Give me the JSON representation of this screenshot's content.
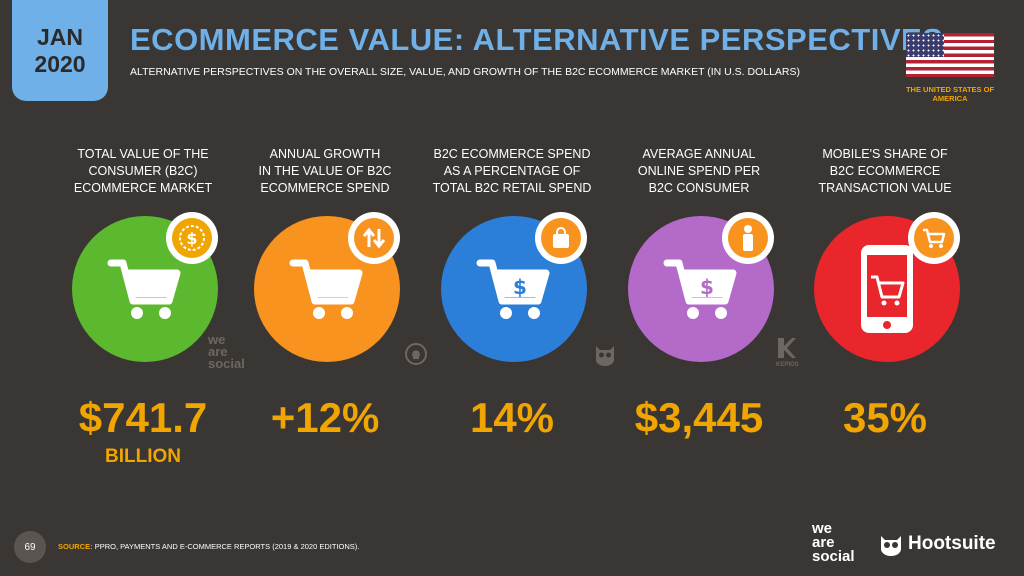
{
  "date_badge": {
    "month": "JAN",
    "year": "2020"
  },
  "header": {
    "title": "ECOMMERCE VALUE: ALTERNATIVE PERSPECTIVES",
    "subtitle": "ALTERNATIVE PERSPECTIVES ON THE OVERALL SIZE, VALUE, AND GROWTH OF THE B2C ECOMMERCE MARKET (IN U.S. DOLLARS)"
  },
  "country": {
    "line1": "THE UNITED STATES OF",
    "line2": "AMERICA",
    "flag_icon": "us-flag-icon"
  },
  "colors": {
    "accent_blue": "#6fb0e9",
    "accent_orange": "#f0a500",
    "background": "#3a3633",
    "green": "#5cb82e",
    "orange": "#f7931e",
    "blue": "#2b7fd9",
    "purple": "#b36ac9",
    "red": "#e8262c"
  },
  "metrics": [
    {
      "label": [
        "TOTAL VALUE OF THE",
        "CONSUMER (B2C)",
        "ECOMMERCE MARKET"
      ],
      "value": "$741.7",
      "unit": "BILLION",
      "icon": "shopping-cart-icon",
      "badge_icon": "dollar-coin-icon"
    },
    {
      "label": [
        "ANNUAL GROWTH",
        "IN THE VALUE OF B2C",
        "ECOMMERCE SPEND"
      ],
      "value": "+12%",
      "unit": "",
      "icon": "shopping-cart-icon",
      "badge_icon": "up-down-arrows-icon"
    },
    {
      "label": [
        "B2C ECOMMERCE SPEND",
        "AS A PERCENTAGE OF",
        "TOTAL B2C RETAIL SPEND"
      ],
      "value": "14%",
      "unit": "",
      "icon": "shopping-cart-dollar-icon",
      "badge_icon": "shopping-bag-icon"
    },
    {
      "label": [
        "AVERAGE ANNUAL",
        "ONLINE SPEND PER",
        "B2C CONSUMER"
      ],
      "value": "$3,445",
      "unit": "",
      "icon": "shopping-cart-dollar-icon",
      "badge_icon": "person-icon"
    },
    {
      "label": [
        "MOBILE'S SHARE OF",
        "B2C ECOMMERCE",
        "TRANSACTION VALUE"
      ],
      "value": "35%",
      "unit": "",
      "icon": "mobile-phone-cart-icon",
      "badge_icon": "shopping-cart-icon"
    }
  ],
  "watermarks": {
    "wearesocial": [
      "we",
      "are",
      "social"
    ],
    "kepios": "KEPIOS"
  },
  "footer": {
    "page_number": "69",
    "source_label": "SOURCE:",
    "source_text": "PPRO, PAYMENTS AND E-COMMERCE REPORTS (2019 & 2020 EDITIONS).",
    "brand1": [
      "we",
      "are",
      "social"
    ],
    "brand2": "Hootsuite"
  }
}
